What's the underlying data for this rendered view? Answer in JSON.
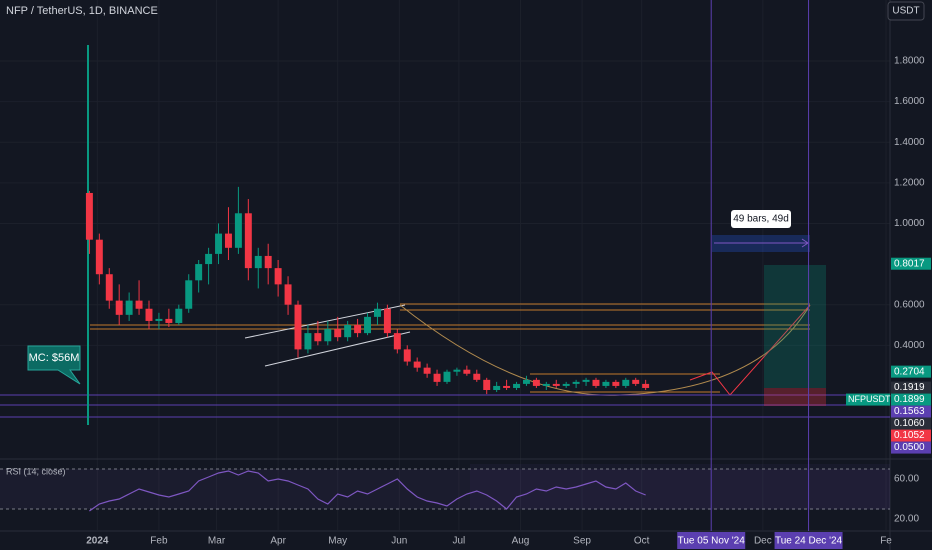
{
  "chart_data": {
    "type": "candlestick",
    "title": "NFP / TetherUS, 1D, BINANCE",
    "currency": "USDT",
    "up_color": "#089981",
    "down_color": "#f23645",
    "x": [
      -4,
      1,
      6,
      11,
      16,
      21,
      26,
      31,
      36,
      41,
      46,
      51,
      56,
      61,
      66,
      71,
      76,
      81,
      86,
      91,
      96,
      101,
      106,
      111,
      116,
      121,
      126,
      131,
      136,
      141,
      146,
      151,
      156,
      161,
      166,
      171,
      176,
      181,
      186,
      191,
      196,
      201,
      206,
      211,
      216,
      221,
      226,
      231,
      236,
      241,
      246,
      251,
      256,
      261,
      266,
      271,
      276
    ],
    "open": [
      1.15,
      0.92,
      0.75,
      0.62,
      0.55,
      0.62,
      0.58,
      0.52,
      0.53,
      0.51,
      0.58,
      0.72,
      0.8,
      0.85,
      0.95,
      0.88,
      1.05,
      0.78,
      0.84,
      0.78,
      0.7,
      0.6,
      0.38,
      0.46,
      0.42,
      0.48,
      0.44,
      0.5,
      0.46,
      0.54,
      0.58,
      0.46,
      0.38,
      0.32,
      0.29,
      0.26,
      0.22,
      0.27,
      0.28,
      0.26,
      0.23,
      0.18,
      0.2,
      0.19,
      0.21,
      0.23,
      0.2,
      0.21,
      0.2,
      0.21,
      0.22,
      0.23,
      0.2,
      0.22,
      0.2,
      0.23,
      0.21
    ],
    "high": [
      1.16,
      0.95,
      0.78,
      0.7,
      0.66,
      0.72,
      0.62,
      0.56,
      0.58,
      0.6,
      0.75,
      0.82,
      0.88,
      1.0,
      1.08,
      1.18,
      1.12,
      0.88,
      0.9,
      0.82,
      0.74,
      0.62,
      0.5,
      0.52,
      0.52,
      0.54,
      0.52,
      0.53,
      0.56,
      0.61,
      0.6,
      0.48,
      0.4,
      0.34,
      0.31,
      0.28,
      0.28,
      0.29,
      0.3,
      0.28,
      0.24,
      0.22,
      0.23,
      0.22,
      0.25,
      0.24,
      0.22,
      0.23,
      0.22,
      0.23,
      0.24,
      0.24,
      0.23,
      0.23,
      0.24,
      0.24,
      0.23
    ],
    "low": [
      0.85,
      0.7,
      0.58,
      0.5,
      0.52,
      0.55,
      0.48,
      0.48,
      0.49,
      0.5,
      0.56,
      0.66,
      0.7,
      0.8,
      0.82,
      0.85,
      0.72,
      0.68,
      0.7,
      0.64,
      0.55,
      0.34,
      0.36,
      0.4,
      0.4,
      0.42,
      0.42,
      0.44,
      0.45,
      0.5,
      0.44,
      0.36,
      0.3,
      0.27,
      0.24,
      0.2,
      0.21,
      0.25,
      0.25,
      0.22,
      0.16,
      0.17,
      0.18,
      0.18,
      0.2,
      0.19,
      0.18,
      0.19,
      0.19,
      0.19,
      0.2,
      0.19,
      0.19,
      0.19,
      0.19,
      0.2,
      0.18
    ],
    "close": [
      0.92,
      0.75,
      0.62,
      0.55,
      0.62,
      0.58,
      0.52,
      0.53,
      0.51,
      0.58,
      0.72,
      0.8,
      0.85,
      0.95,
      0.88,
      1.05,
      0.78,
      0.84,
      0.78,
      0.7,
      0.6,
      0.38,
      0.46,
      0.42,
      0.48,
      0.44,
      0.5,
      0.46,
      0.54,
      0.58,
      0.46,
      0.38,
      0.32,
      0.29,
      0.26,
      0.22,
      0.27,
      0.28,
      0.26,
      0.23,
      0.18,
      0.2,
      0.19,
      0.21,
      0.23,
      0.2,
      0.21,
      0.2,
      0.21,
      0.22,
      0.23,
      0.2,
      0.22,
      0.2,
      0.23,
      0.21,
      0.19
    ],
    "xlim": [
      -49,
      399
    ],
    "ylim": [
      -0.14,
      2.1
    ],
    "xticks": [
      {
        "value": 0,
        "label": "2024"
      },
      {
        "value": 31,
        "label": "Feb"
      },
      {
        "value": 60,
        "label": "Mar"
      },
      {
        "value": 91,
        "label": "Apr"
      },
      {
        "value": 121,
        "label": "May"
      },
      {
        "value": 152,
        "label": "Jun"
      },
      {
        "value": 182,
        "label": "Jul"
      },
      {
        "value": 213,
        "label": "Aug"
      },
      {
        "value": 244,
        "label": "Sep"
      },
      {
        "value": 274,
        "label": "Oct"
      },
      {
        "value": 335,
        "label": "Dec"
      },
      {
        "value": 397,
        "label": "Fe"
      }
    ],
    "yticks": [
      {
        "value": 0.4,
        "label": "0.4000"
      },
      {
        "value": 0.6,
        "label": "0.6000"
      },
      {
        "value": 1.0,
        "label": "1.0000"
      },
      {
        "value": 1.2,
        "label": "1.2000"
      },
      {
        "value": 1.4,
        "label": "1.4000"
      },
      {
        "value": 1.6,
        "label": "1.6000"
      },
      {
        "value": 1.8,
        "label": "1.8000"
      }
    ],
    "price_labels": [
      {
        "value": 0.8017,
        "label": "0.8017",
        "color": "#089981"
      },
      {
        "value": 0.2704,
        "label": "0.2704",
        "color": "#089981"
      },
      {
        "value": 0.1919,
        "label": "0.1919",
        "color": "#2a2e39"
      },
      {
        "value": 0.1899,
        "label": "0.1899",
        "color": "#089981",
        "name": "NFPUSDT"
      },
      {
        "value": 0.1563,
        "label": "0.1563",
        "color": "#5b3fb0"
      },
      {
        "value": 0.106,
        "label": "0.1060",
        "color": "#2a2e39"
      },
      {
        "value": 0.1052,
        "label": "0.1052",
        "color": "#f23645"
      },
      {
        "value": 0.05,
        "label": "0.0500",
        "color": "#5b3fb0"
      }
    ],
    "date_markers": [
      {
        "value": 309,
        "label": "Tue 05 Nov '24"
      },
      {
        "value": 358,
        "label": "Tue 24 Dec '24"
      }
    ],
    "annotations": {
      "market_cap": "MC: $56M",
      "measure": "49 bars, 49d"
    },
    "rsi": {
      "name": "RSI (14, close)",
      "color": "#7e57c2",
      "values": [
        28,
        35,
        38,
        40,
        45,
        50,
        47,
        44,
        42,
        45,
        48,
        58,
        62,
        66,
        68,
        64,
        68,
        66,
        58,
        60,
        58,
        54,
        50,
        40,
        35,
        45,
        42,
        48,
        45,
        50,
        55,
        60,
        50,
        42,
        38,
        36,
        33,
        40,
        45,
        48,
        44,
        38,
        30,
        42,
        45,
        50,
        48,
        52,
        50,
        52,
        55,
        58,
        52,
        50,
        56,
        48,
        44
      ],
      "ylim": [
        9,
        77
      ],
      "yticks": [
        {
          "value": 20,
          "label": "20.00"
        },
        {
          "value": 60,
          "label": "60.00"
        }
      ]
    }
  }
}
